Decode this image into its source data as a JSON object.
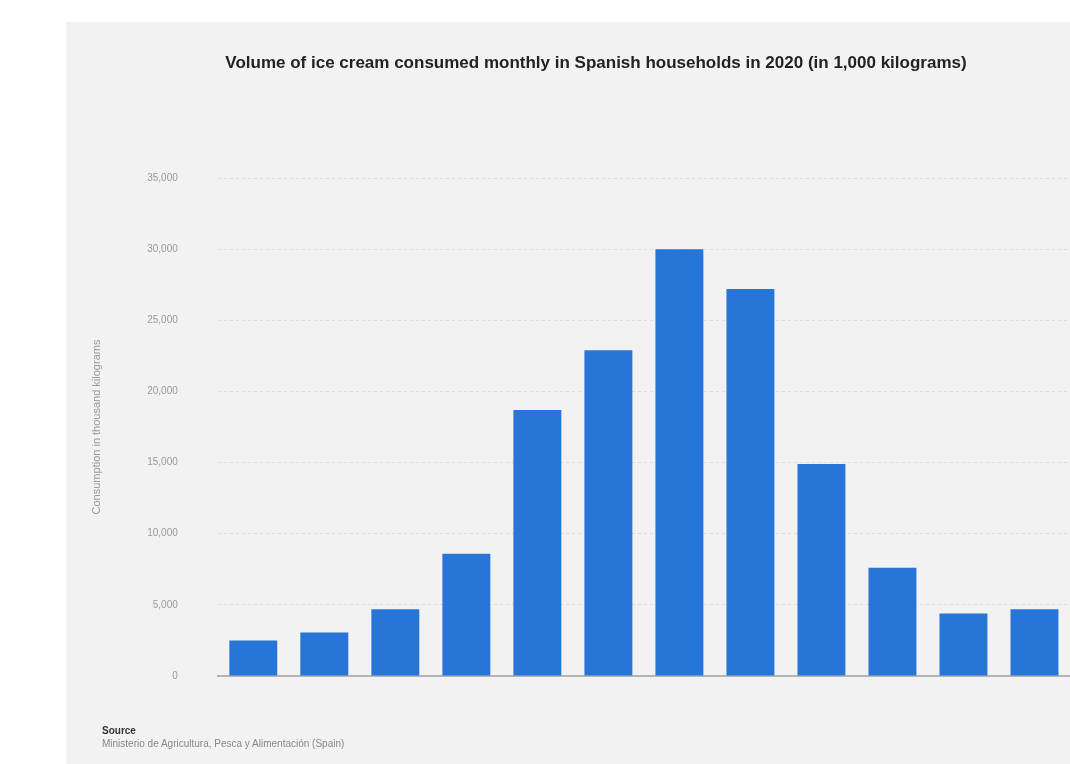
{
  "chart_data": {
    "type": "bar",
    "title": "Volume of ice cream consumed monthly in Spanish households in 2020 (in 1,000 kilograms)",
    "ylabel": "Consumption in thousand kilograms",
    "categories": [
      null,
      null,
      null,
      null,
      null,
      null,
      null,
      null,
      null,
      null,
      null,
      null
    ],
    "values": [
      2500,
      3050,
      4700,
      8600,
      18700,
      22900,
      30000,
      27200,
      14900,
      7600,
      4400,
      4700
    ],
    "color": "#2875d8",
    "ylim": [
      0,
      35000
    ],
    "yticks": [
      0,
      {
        "value": 5000,
        "label": "5,000"
      },
      {
        "value": 10000,
        "label": "10,000"
      },
      {
        "value": 15000,
        "label": "15,000"
      },
      {
        "value": 20000,
        "label": "20,000"
      },
      {
        "value": 25000,
        "label": "25,000"
      },
      {
        "value": 30000,
        "label": "30,000"
      },
      {
        "value": 35000,
        "label": "35,000"
      }
    ],
    "grid": "y",
    "annotations": [
      "Source",
      "Ministerio de Agricultura, Pesca y Alimentación (Spain)"
    ]
  }
}
